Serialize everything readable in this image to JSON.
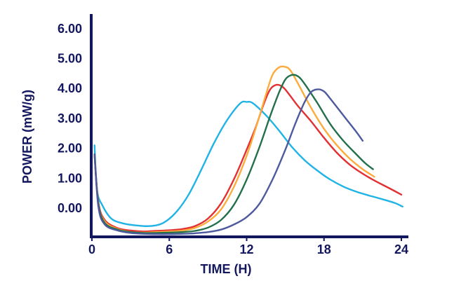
{
  "chart_data": {
    "type": "line",
    "title": "",
    "xlabel": "TIME (H)",
    "ylabel": "POWER  (mW/g)",
    "xlim": [
      0,
      24
    ],
    "ylim": [
      -0.9,
      6.4
    ],
    "x_ticks": [
      {
        "value": 0,
        "label": "0"
      },
      {
        "value": 6,
        "label": "6"
      },
      {
        "value": 12,
        "label": "12"
      },
      {
        "value": 18,
        "label": "18"
      },
      {
        "value": 24,
        "label": "24"
      }
    ],
    "y_ticks": [
      {
        "value": 0,
        "label": "0.00"
      },
      {
        "value": 1,
        "label": "1.00"
      },
      {
        "value": 2,
        "label": "2.00"
      },
      {
        "value": 3,
        "label": "3.00"
      },
      {
        "value": 4,
        "label": "4.00"
      },
      {
        "value": 5,
        "label": "5.00"
      },
      {
        "value": 6,
        "label": "6.00"
      }
    ],
    "grid": false,
    "legend": "none",
    "series": [
      {
        "color": "#1fb3e6",
        "points": [
          [
            0.2,
            2.1
          ],
          [
            0.4,
            0.6
          ],
          [
            0.8,
            0.1
          ],
          [
            1.5,
            -0.35
          ],
          [
            2.5,
            -0.52
          ],
          [
            3.5,
            -0.58
          ],
          [
            4.5,
            -0.6
          ],
          [
            5.5,
            -0.5
          ],
          [
            6.5,
            -0.15
          ],
          [
            7.5,
            0.45
          ],
          [
            8.5,
            1.3
          ],
          [
            9.5,
            2.2
          ],
          [
            10.5,
            2.95
          ],
          [
            11.5,
            3.5
          ],
          [
            12.0,
            3.55
          ],
          [
            12.5,
            3.5
          ],
          [
            13.5,
            3.1
          ],
          [
            14.5,
            2.6
          ],
          [
            15.5,
            2.05
          ],
          [
            16.5,
            1.6
          ],
          [
            17.5,
            1.25
          ],
          [
            18.5,
            0.95
          ],
          [
            19.5,
            0.72
          ],
          [
            20.5,
            0.55
          ],
          [
            21.5,
            0.42
          ],
          [
            22.5,
            0.3
          ],
          [
            23.5,
            0.17
          ],
          [
            24.1,
            0.05
          ]
        ]
      },
      {
        "color": "#e33032",
        "points": [
          [
            0.2,
            1.8
          ],
          [
            0.5,
            0.2
          ],
          [
            1.0,
            -0.4
          ],
          [
            2.0,
            -0.67
          ],
          [
            3.0,
            -0.75
          ],
          [
            4.0,
            -0.78
          ],
          [
            5.0,
            -0.76
          ],
          [
            6.0,
            -0.74
          ],
          [
            7.0,
            -0.7
          ],
          [
            8.0,
            -0.6
          ],
          [
            9.0,
            -0.35
          ],
          [
            10.0,
            0.15
          ],
          [
            11.0,
            0.95
          ],
          [
            12.0,
            1.95
          ],
          [
            12.7,
            2.7
          ],
          [
            13.3,
            3.45
          ],
          [
            13.8,
            3.95
          ],
          [
            14.3,
            4.12
          ],
          [
            14.8,
            4.05
          ],
          [
            15.3,
            3.8
          ],
          [
            16.0,
            3.4
          ],
          [
            17.0,
            2.9
          ],
          [
            18.0,
            2.35
          ],
          [
            19.0,
            1.85
          ],
          [
            20.0,
            1.45
          ],
          [
            21.0,
            1.15
          ],
          [
            22.0,
            0.9
          ],
          [
            23.0,
            0.68
          ],
          [
            24.0,
            0.45
          ]
        ]
      },
      {
        "color": "#fcac3c",
        "points": [
          [
            0.2,
            1.8
          ],
          [
            0.5,
            0.15
          ],
          [
            1.0,
            -0.45
          ],
          [
            2.0,
            -0.7
          ],
          [
            3.0,
            -0.8
          ],
          [
            4.0,
            -0.82
          ],
          [
            5.0,
            -0.8
          ],
          [
            6.0,
            -0.78
          ],
          [
            7.0,
            -0.75
          ],
          [
            8.0,
            -0.66
          ],
          [
            9.0,
            -0.45
          ],
          [
            10.0,
            -0.05
          ],
          [
            11.0,
            0.7
          ],
          [
            12.0,
            1.75
          ],
          [
            12.8,
            2.8
          ],
          [
            13.5,
            3.8
          ],
          [
            14.0,
            4.45
          ],
          [
            14.5,
            4.7
          ],
          [
            15.0,
            4.72
          ],
          [
            15.4,
            4.6
          ],
          [
            16.0,
            4.15
          ],
          [
            17.0,
            3.35
          ],
          [
            18.0,
            2.65
          ],
          [
            19.0,
            2.1
          ],
          [
            20.0,
            1.65
          ],
          [
            21.0,
            1.3
          ],
          [
            21.9,
            1.05
          ]
        ]
      },
      {
        "color": "#24704a",
        "points": [
          [
            0.2,
            1.8
          ],
          [
            0.5,
            0.15
          ],
          [
            1.0,
            -0.5
          ],
          [
            2.0,
            -0.72
          ],
          [
            3.0,
            -0.8
          ],
          [
            4.0,
            -0.83
          ],
          [
            5.0,
            -0.83
          ],
          [
            6.0,
            -0.82
          ],
          [
            7.0,
            -0.8
          ],
          [
            8.0,
            -0.76
          ],
          [
            9.0,
            -0.65
          ],
          [
            10.0,
            -0.4
          ],
          [
            11.0,
            0.1
          ],
          [
            12.0,
            0.95
          ],
          [
            13.0,
            2.05
          ],
          [
            13.8,
            3.05
          ],
          [
            14.5,
            3.85
          ],
          [
            15.0,
            4.3
          ],
          [
            15.5,
            4.45
          ],
          [
            16.0,
            4.4
          ],
          [
            16.5,
            4.15
          ],
          [
            17.5,
            3.5
          ],
          [
            18.5,
            2.8
          ],
          [
            19.5,
            2.25
          ],
          [
            20.5,
            1.8
          ],
          [
            21.2,
            1.5
          ],
          [
            21.8,
            1.3
          ]
        ]
      },
      {
        "color": "#4d5a9e",
        "points": [
          [
            0.2,
            1.8
          ],
          [
            0.5,
            0.05
          ],
          [
            1.0,
            -0.55
          ],
          [
            2.0,
            -0.75
          ],
          [
            3.0,
            -0.83
          ],
          [
            4.0,
            -0.86
          ],
          [
            5.0,
            -0.87
          ],
          [
            6.0,
            -0.87
          ],
          [
            7.0,
            -0.86
          ],
          [
            8.0,
            -0.84
          ],
          [
            9.0,
            -0.8
          ],
          [
            10.0,
            -0.72
          ],
          [
            11.0,
            -0.55
          ],
          [
            12.0,
            -0.3
          ],
          [
            13.0,
            0.15
          ],
          [
            14.0,
            0.95
          ],
          [
            15.0,
            1.95
          ],
          [
            15.8,
            2.85
          ],
          [
            16.5,
            3.55
          ],
          [
            17.0,
            3.88
          ],
          [
            17.5,
            3.97
          ],
          [
            18.0,
            3.9
          ],
          [
            18.5,
            3.65
          ],
          [
            19.5,
            3.1
          ],
          [
            20.5,
            2.55
          ],
          [
            21.0,
            2.25
          ]
        ]
      }
    ]
  }
}
